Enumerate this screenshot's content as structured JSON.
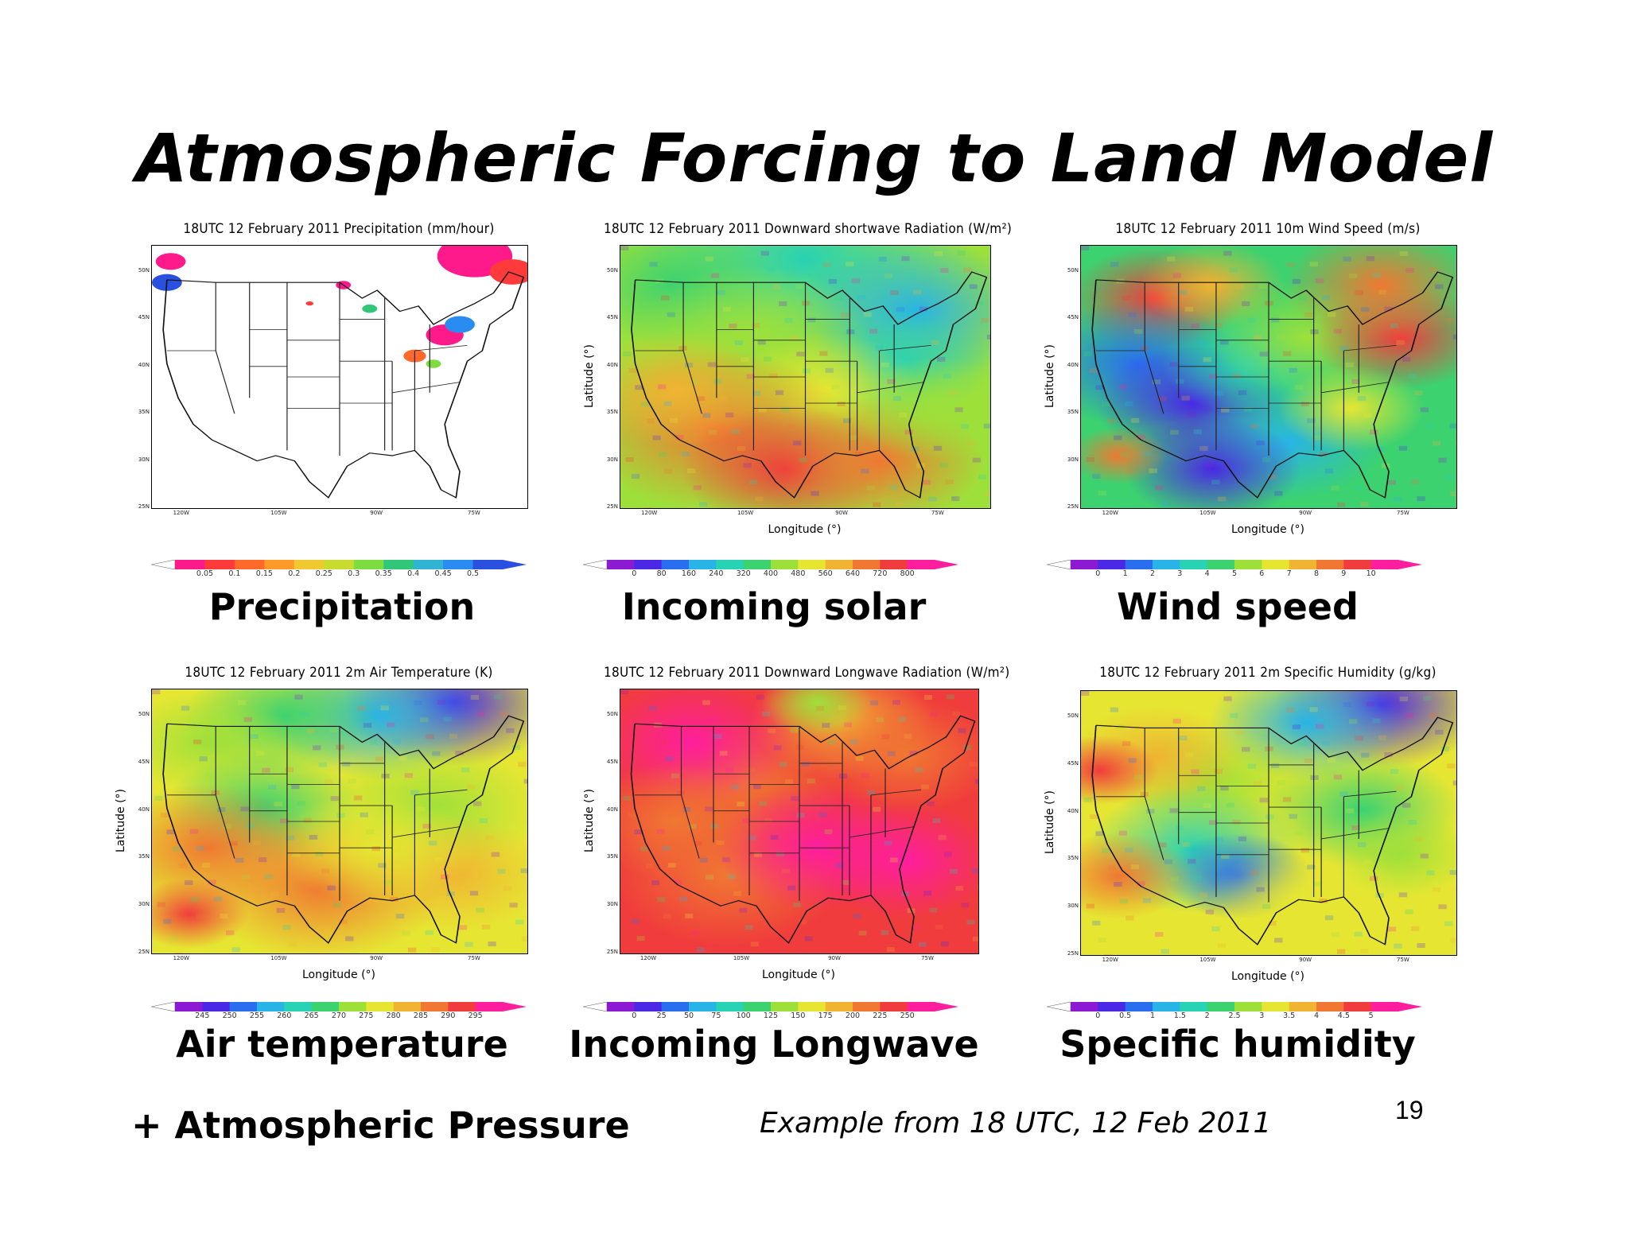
{
  "slide": {
    "title": "Atmospheric Forcing to Land Model",
    "footer_left": "+ Atmospheric Pressure",
    "footer_example": "Example from 18 UTC,  12 Feb 2011",
    "page_number": "19"
  },
  "axes": {
    "lat_ticks": [
      "50N",
      "45N",
      "40N",
      "35N",
      "30N",
      "25N"
    ],
    "lon_ticks": [
      "120W",
      "105W",
      "90W",
      "75W"
    ],
    "xlabel": "Longitude (°)",
    "ylabel": "Latitude (°)"
  },
  "panels": [
    {
      "title": "18UTC 12 February 2011 Precipitation (mm/hour)",
      "caption": "Precipitation",
      "colorbar_ticks": [
        "0.05",
        "0.1",
        "0.15",
        "0.2",
        "0.25",
        "0.3",
        "0.35",
        "0.4",
        "0.45",
        "0.5"
      ],
      "colorbar_colors": [
        "#ff1a8c",
        "#ff3a3a",
        "#ff6a2a",
        "#ff9a2a",
        "#f0c830",
        "#c8dc30",
        "#7cdc40",
        "#30c878",
        "#30b4d2",
        "#2a8cf0",
        "#2a50e0"
      ],
      "map_style": "precip",
      "show_xlabel": false,
      "show_ylabel": false
    },
    {
      "title": "18UTC 12 February 2011 Downward shortwave Radiation (W/m²)",
      "caption": "Incoming solar",
      "colorbar_ticks": [
        "0",
        "80",
        "160",
        "240",
        "320",
        "400",
        "480",
        "560",
        "640",
        "720",
        "800"
      ],
      "colorbar_colors": [
        "#8c1ad2",
        "#4a28e6",
        "#2a6ef0",
        "#28b4e6",
        "#28d2b4",
        "#3cd270",
        "#9ee03a",
        "#e6e632",
        "#f0b432",
        "#f07832",
        "#f03c3c",
        "#ff1e9e"
      ],
      "map_style": "solar",
      "show_xlabel": true,
      "show_ylabel": true
    },
    {
      "title": "18UTC 12 February 2011 10m Wind Speed (m/s)",
      "caption": "Wind speed",
      "colorbar_ticks": [
        "0",
        "1",
        "2",
        "3",
        "4",
        "5",
        "6",
        "7",
        "8",
        "9",
        "10"
      ],
      "colorbar_colors": [
        "#8c1ad2",
        "#4a28e6",
        "#2a6ef0",
        "#28b4e6",
        "#28d2b4",
        "#3cd270",
        "#9ee03a",
        "#e6e632",
        "#f0b432",
        "#f07832",
        "#f03c3c",
        "#ff1e9e"
      ],
      "map_style": "wind",
      "show_xlabel": true,
      "show_ylabel": true
    },
    {
      "title": "18UTC 12 February 2011 2m Air Temperature (K)",
      "caption": "Air temperature",
      "colorbar_ticks": [
        "245",
        "250",
        "255",
        "260",
        "265",
        "270",
        "275",
        "280",
        "285",
        "290",
        "295"
      ],
      "colorbar_colors": [
        "#8c1ad2",
        "#4a28e6",
        "#2a6ef0",
        "#28b4e6",
        "#28d2b4",
        "#3cd270",
        "#9ee03a",
        "#e6e632",
        "#f0b432",
        "#f07832",
        "#f03c3c",
        "#ff1e9e"
      ],
      "map_style": "temp",
      "show_xlabel": true,
      "show_ylabel": true
    },
    {
      "title": "18UTC 12 February 2011 Downward Longwave Radiation (W/m²)",
      "caption": "Incoming Longwave",
      "colorbar_ticks": [
        "0",
        "25",
        "50",
        "75",
        "100",
        "125",
        "150",
        "175",
        "200",
        "225",
        "250"
      ],
      "colorbar_colors": [
        "#8c1ad2",
        "#4a28e6",
        "#2a6ef0",
        "#28b4e6",
        "#28d2b4",
        "#3cd270",
        "#9ee03a",
        "#e6e632",
        "#f0b432",
        "#f07832",
        "#f03c3c",
        "#ff1e9e"
      ],
      "map_style": "longwave",
      "show_xlabel": true,
      "show_ylabel": true
    },
    {
      "title": "18UTC 12 February 2011 2m Specific Humidity (g/kg)",
      "caption": "Specific humidity",
      "colorbar_ticks": [
        "0",
        "0.5",
        "1",
        "1.5",
        "2",
        "2.5",
        "3",
        "3.5",
        "4",
        "4.5",
        "5"
      ],
      "colorbar_colors": [
        "#8c1ad2",
        "#4a28e6",
        "#2a6ef0",
        "#28b4e6",
        "#28d2b4",
        "#3cd270",
        "#9ee03a",
        "#e6e632",
        "#f0b432",
        "#f07832",
        "#f03c3c",
        "#ff1e9e"
      ],
      "map_style": "humidity",
      "show_xlabel": true,
      "show_ylabel": true
    }
  ]
}
